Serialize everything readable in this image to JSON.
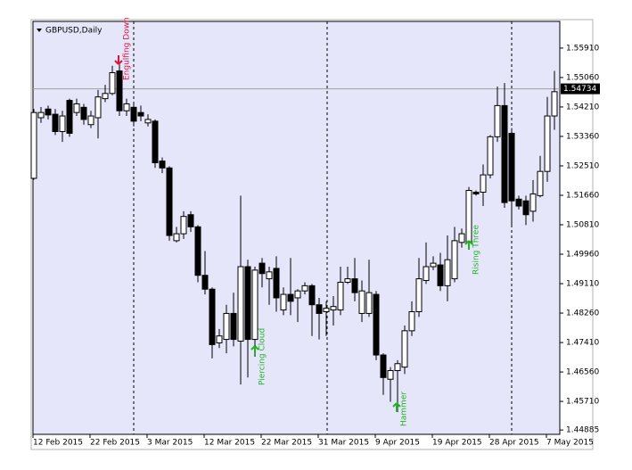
{
  "chart_data": {
    "type": "candlestick",
    "title": "GBPUSD,Daily",
    "categories": [
      "12 Feb 2015",
      null,
      null,
      null,
      null,
      null,
      null,
      null,
      "22 Feb 2015",
      null,
      null,
      null,
      null,
      null,
      null,
      null,
      "3 Mar 2015",
      null,
      null,
      null,
      null,
      null,
      null,
      null,
      "12 Mar 2015",
      null,
      null,
      null,
      null,
      null,
      null,
      null,
      "22 Mar 2015",
      null,
      null,
      null,
      null,
      null,
      null,
      null,
      "31 Mar 2015",
      null,
      null,
      null,
      null,
      null,
      null,
      null,
      "9 Apr 2015",
      null,
      null,
      null,
      null,
      null,
      null,
      null,
      "19 Apr 2015",
      null,
      null,
      null,
      null,
      null,
      null,
      null,
      "28 Apr 2015",
      null,
      null,
      null,
      null,
      null,
      null,
      null,
      "7 May 2015",
      null
    ],
    "open": [
      1.5215,
      1.539,
      1.5415,
      1.54,
      1.535,
      1.544,
      1.5405,
      1.542,
      1.537,
      1.539,
      1.5445,
      1.546,
      1.5525,
      1.541,
      1.542,
      1.5405,
      1.5375,
      1.538,
      1.5265,
      1.5245,
      1.5035,
      1.5055,
      1.511,
      1.5075,
      1.4935,
      1.4895,
      1.474,
      1.475,
      1.4825,
      1.4745,
      1.496,
      1.475,
      1.497,
      1.4925,
      1.4955,
      1.4835,
      1.488,
      1.487,
      1.489,
      1.4905,
      1.485,
      1.483,
      1.4835,
      1.4835,
      1.4915,
      1.4925,
      1.4825,
      1.4825,
      1.488,
      1.4705,
      1.4635,
      1.466,
      1.467,
      1.4775,
      1.483,
      1.492,
      1.496,
      1.4965,
      1.4905,
      1.4925,
      1.503,
      1.503,
      1.5175,
      1.5175,
      1.5225,
      1.5335,
      1.5425,
      1.5345,
      1.5155,
      1.515,
      1.512,
      1.5165,
      1.5235,
      1.5395
    ],
    "high": [
      1.5415,
      1.5421,
      1.5425,
      1.5415,
      1.541,
      1.5445,
      1.5445,
      1.543,
      1.541,
      1.547,
      1.5485,
      1.554,
      1.5545,
      1.5445,
      1.543,
      1.5425,
      1.54,
      1.5385,
      1.5275,
      1.525,
      1.5075,
      1.512,
      1.512,
      1.508,
      1.5005,
      1.49,
      1.478,
      1.485,
      1.4885,
      1.5165,
      1.498,
      1.496,
      1.4985,
      1.496,
      1.499,
      1.49,
      1.4985,
      1.4895,
      1.4915,
      1.491,
      1.487,
      1.486,
      1.4875,
      1.496,
      1.496,
      1.4985,
      1.492,
      1.498,
      1.489,
      1.471,
      1.467,
      1.469,
      1.479,
      1.486,
      1.4985,
      1.503,
      1.499,
      1.5,
      1.505,
      1.5075,
      1.507,
      1.519,
      1.518,
      1.5255,
      1.534,
      1.548,
      1.549,
      1.536,
      1.5165,
      1.5165,
      1.521,
      1.528,
      1.545,
      1.5525
    ],
    "low": [
      1.5211,
      1.5375,
      1.5385,
      1.534,
      1.532,
      1.5335,
      1.5395,
      1.537,
      1.536,
      1.533,
      1.5435,
      1.5455,
      1.5395,
      1.5395,
      1.5365,
      1.538,
      1.5365,
      1.5245,
      1.523,
      1.5035,
      1.503,
      1.504,
      1.506,
      1.4915,
      1.488,
      1.4695,
      1.4725,
      1.471,
      1.473,
      1.462,
      1.464,
      1.47,
      1.49,
      1.485,
      1.483,
      1.482,
      1.482,
      1.48,
      1.488,
      1.476,
      1.475,
      1.476,
      1.479,
      1.482,
      1.491,
      1.486,
      1.48,
      1.4815,
      1.469,
      1.459,
      1.457,
      1.454,
      1.465,
      1.476,
      1.4815,
      1.491,
      1.495,
      1.489,
      1.486,
      1.4915,
      1.5015,
      1.502,
      1.5165,
      1.5135,
      1.5215,
      1.532,
      1.513,
      1.508,
      1.5125,
      1.508,
      1.509,
      1.516,
      1.5205,
      1.5355
    ],
    "close": [
      1.5405,
      1.5405,
      1.5398,
      1.535,
      1.5395,
      1.5345,
      1.543,
      1.5385,
      1.5395,
      1.545,
      1.546,
      1.552,
      1.541,
      1.543,
      1.538,
      1.5395,
      1.5385,
      1.526,
      1.5245,
      1.505,
      1.5055,
      1.5105,
      1.5075,
      1.4935,
      1.4895,
      1.4735,
      1.476,
      1.4825,
      1.475,
      1.496,
      1.475,
      1.495,
      1.494,
      1.4945,
      1.487,
      1.488,
      1.486,
      1.489,
      1.4905,
      1.485,
      1.4825,
      1.484,
      1.4845,
      1.4915,
      1.4925,
      1.4885,
      1.489,
      1.4885,
      1.4705,
      1.464,
      1.466,
      1.468,
      1.4775,
      1.483,
      1.4925,
      1.496,
      1.497,
      1.4905,
      1.498,
      1.5035,
      1.5055,
      1.518,
      1.517,
      1.5225,
      1.5335,
      1.5425,
      1.5145,
      1.515,
      1.5135,
      1.511,
      1.517,
      1.5235,
      1.5395,
      1.5465
    ],
    "up_color": "#ffffff",
    "down_color": "#000000",
    "ylim": [
      1.4476,
      1.5668
    ],
    "yticks": [
      {
        "value": 1.5591,
        "label": "1.55910"
      },
      {
        "value": 1.5506,
        "label": "1.55060"
      },
      {
        "value": 1.5421,
        "label": "1.54210"
      },
      {
        "value": 1.5336,
        "label": "1.53360"
      },
      {
        "value": 1.5251,
        "label": "1.52510"
      },
      {
        "value": 1.5166,
        "label": "1.51660"
      },
      {
        "value": 1.5081,
        "label": "1.50810"
      },
      {
        "value": 1.4996,
        "label": "1.49960"
      },
      {
        "value": 1.4911,
        "label": "1.49110"
      },
      {
        "value": 1.4826,
        "label": "1.48260"
      },
      {
        "value": 1.4741,
        "label": "1.47410"
      },
      {
        "value": 1.4656,
        "label": "1.46560"
      },
      {
        "value": 1.4571,
        "label": "1.45710"
      },
      1.44885
    ],
    "current_price": 1.54734,
    "annotations": [
      {
        "text": "Engulfing Down",
        "color": "#dc143c"
      },
      {
        "text": "Piercing Cloud",
        "color": "#22b222"
      },
      {
        "text": "Hammer",
        "color": "#22b222"
      },
      {
        "text": "Rising Three",
        "color": "#22b222"
      }
    ]
  }
}
